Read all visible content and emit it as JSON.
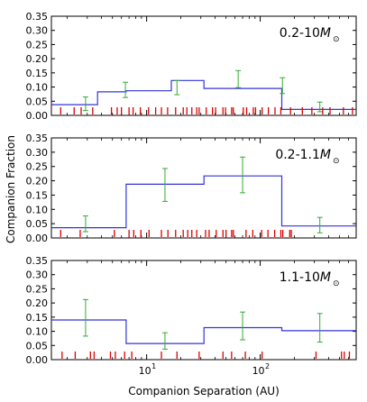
{
  "figure": {
    "ylabel": "Companion Fraction",
    "xlabel": "Companion Separation (AU)",
    "x_ticks": [
      {
        "value": 10,
        "label": "10",
        "sup": "1"
      },
      {
        "value": 100,
        "label": "10",
        "sup": "2"
      }
    ],
    "y_ticks": [
      "0.00",
      "0.05",
      "0.10",
      "0.15",
      "0.20",
      "0.25",
      "0.30",
      "0.35"
    ],
    "colors": {
      "histogram": "#3333dd",
      "errorbar": "#33aa33",
      "rug": "#dd0000"
    }
  },
  "chart_data": [
    {
      "type": "step-histogram",
      "panel_label": "0.2-10",
      "panel_label_unit": "M",
      "panel_label_sub": "⊙",
      "x_scale": "log",
      "xlim": [
        1.45,
        700
      ],
      "ylim": [
        0,
        0.35
      ],
      "bin_edges": [
        1.45,
        3.7,
        6.6,
        16.5,
        32,
        155,
        610,
        700
      ],
      "values": [
        0.038,
        0.083,
        0.087,
        0.123,
        0.095,
        0.021,
        0.021
      ],
      "errorbars": [
        {
          "x": 2.9,
          "y": 0.04,
          "lo": 0.017,
          "hi": 0.065
        },
        {
          "x": 6.5,
          "y": 0.09,
          "lo": 0.063,
          "hi": 0.117
        },
        {
          "x": 18.5,
          "y": 0.098,
          "lo": 0.073,
          "hi": 0.123
        },
        {
          "x": 64,
          "y": 0.128,
          "lo": 0.098,
          "hi": 0.158
        },
        {
          "x": 157,
          "y": 0.105,
          "lo": 0.077,
          "hi": 0.133
        },
        {
          "x": 335,
          "y": 0.03,
          "lo": 0.013,
          "hi": 0.047
        }
      ],
      "rug": [
        1.75,
        2.3,
        2.65,
        3.35,
        4.9,
        5.5,
        6.0,
        7.0,
        7.6,
        8.8,
        10.4,
        12.0,
        13.5,
        15.3,
        18.0,
        21.0,
        22.6,
        25.0,
        27.6,
        29.0,
        33.5,
        38.0,
        40.5,
        47.0,
        49.5,
        56.0,
        58.0,
        71.0,
        76.0,
        87.0,
        91.0,
        104.0,
        118.0,
        135.0,
        152.0,
        185.0,
        235.0,
        285.0,
        355.0,
        412.0,
        540.0,
        650.0
      ]
    },
    {
      "type": "step-histogram",
      "panel_label": "0.2-1.1",
      "panel_label_unit": "M",
      "panel_label_sub": "⊙",
      "x_scale": "log",
      "xlim": [
        1.45,
        700
      ],
      "ylim": [
        0,
        0.35
      ],
      "bin_edges": [
        1.45,
        6.6,
        32,
        155,
        700
      ],
      "values": [
        0.036,
        0.188,
        0.217,
        0.042
      ],
      "errorbars": [
        {
          "x": 2.9,
          "y": 0.05,
          "lo": 0.022,
          "hi": 0.077
        },
        {
          "x": 14.5,
          "y": 0.185,
          "lo": 0.128,
          "hi": 0.243
        },
        {
          "x": 70,
          "y": 0.22,
          "lo": 0.158,
          "hi": 0.283
        },
        {
          "x": 335,
          "y": 0.045,
          "lo": 0.018,
          "hi": 0.072
        }
      ],
      "rug": [
        1.75,
        2.6,
        5.2,
        7.0,
        7.7,
        8.9,
        10.5,
        13.5,
        15.4,
        18.0,
        21.0,
        23.0,
        25.0,
        27.6,
        33.0,
        35.5,
        41.0,
        47.0,
        50.0,
        56.0,
        58.0,
        75.0,
        86.0,
        103.0,
        117.0,
        134.0,
        152.0,
        158.0,
        182.0,
        188.0
      ]
    },
    {
      "type": "step-histogram",
      "panel_label": "1.1-10",
      "panel_label_unit": "M",
      "panel_label_sub": "⊙",
      "x_scale": "log",
      "xlim": [
        1.45,
        700
      ],
      "ylim": [
        0,
        0.35
      ],
      "bin_edges": [
        1.45,
        6.6,
        32,
        155,
        700
      ],
      "values": [
        0.14,
        0.057,
        0.113,
        0.102
      ],
      "errorbars": [
        {
          "x": 2.9,
          "y": 0.145,
          "lo": 0.083,
          "hi": 0.212
        },
        {
          "x": 14.5,
          "y": 0.065,
          "lo": 0.037,
          "hi": 0.095
        },
        {
          "x": 70,
          "y": 0.118,
          "lo": 0.07,
          "hi": 0.168
        },
        {
          "x": 335,
          "y": 0.11,
          "lo": 0.062,
          "hi": 0.163
        }
      ],
      "rug": [
        1.8,
        2.35,
        3.2,
        3.45,
        4.8,
        5.3,
        6.4,
        7.4,
        13.5,
        18.5,
        29.0,
        47.0,
        56.0,
        74.0,
        104.0,
        310.0,
        520.0,
        550.0,
        610.0
      ]
    }
  ]
}
